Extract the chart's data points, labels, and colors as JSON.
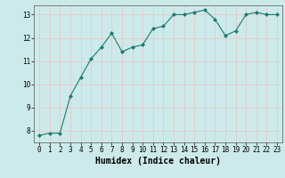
{
  "x": [
    0,
    1,
    2,
    3,
    4,
    5,
    6,
    7,
    8,
    9,
    10,
    11,
    12,
    13,
    14,
    15,
    16,
    17,
    18,
    19,
    20,
    21,
    22,
    23
  ],
  "y": [
    7.8,
    7.9,
    7.9,
    9.5,
    10.3,
    11.1,
    11.6,
    12.2,
    11.4,
    11.6,
    11.7,
    12.4,
    12.5,
    13.0,
    13.0,
    13.1,
    13.2,
    12.8,
    12.1,
    12.3,
    13.0,
    13.1,
    13.0,
    13.0
  ],
  "xlabel": "Humidex (Indice chaleur)",
  "ylim": [
    7.5,
    13.4
  ],
  "xlim": [
    -0.5,
    23.5
  ],
  "yticks": [
    8,
    9,
    10,
    11,
    12,
    13
  ],
  "xticks": [
    0,
    1,
    2,
    3,
    4,
    5,
    6,
    7,
    8,
    9,
    10,
    11,
    12,
    13,
    14,
    15,
    16,
    17,
    18,
    19,
    20,
    21,
    22,
    23
  ],
  "line_color": "#1a7a6e",
  "marker": "D",
  "marker_size": 2.0,
  "bg_color": "#cceaea",
  "grid_color": "#e8c8c8",
  "tick_fontsize": 5.5,
  "xlabel_fontsize": 7.0,
  "spine_color": "#555555"
}
